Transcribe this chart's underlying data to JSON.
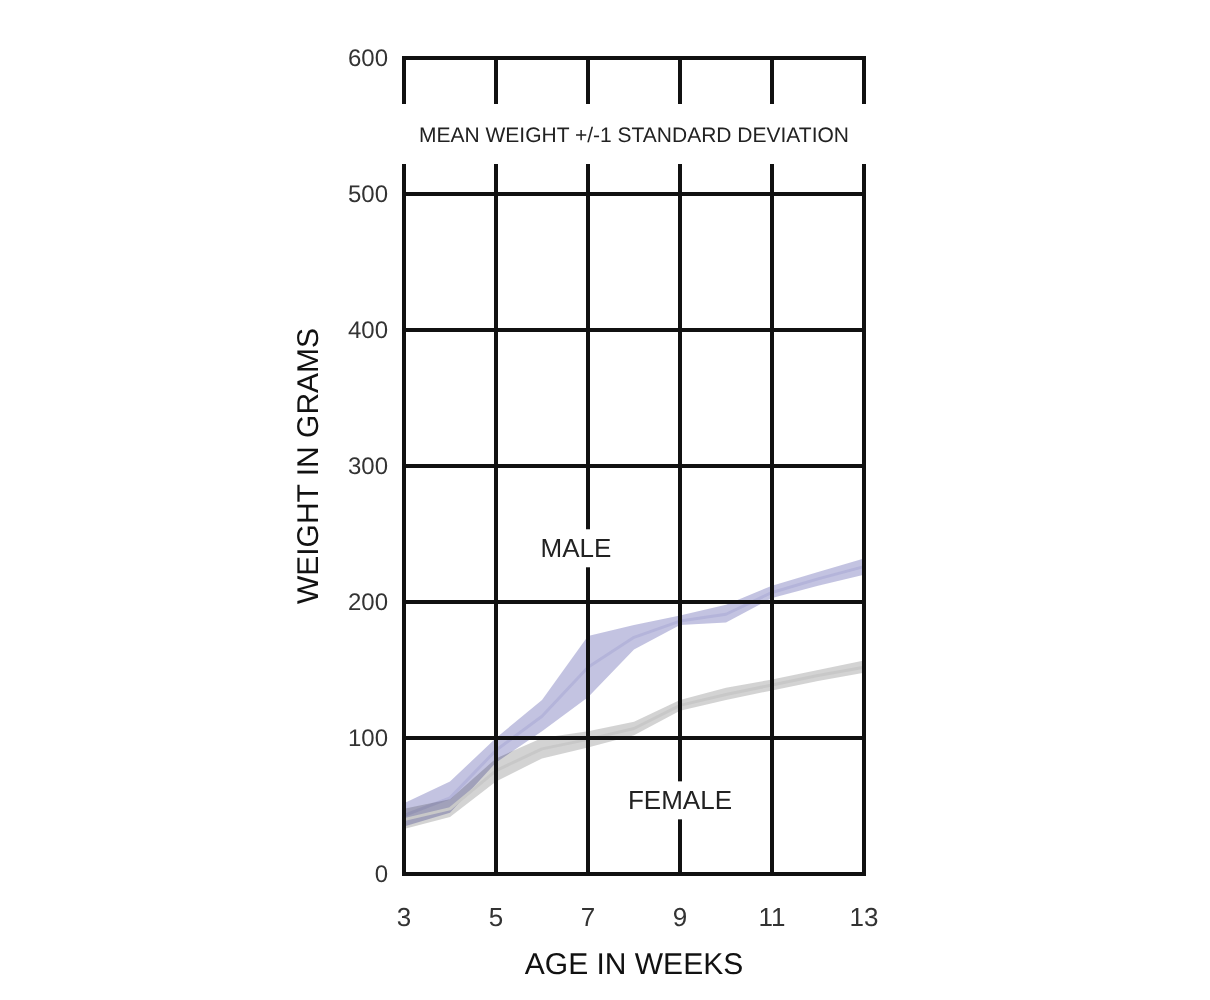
{
  "chart_data": {
    "type": "line",
    "title": "MEAN WEIGHT +/-1 STANDARD DEVIATION",
    "xlabel": "AGE IN WEEKS",
    "ylabel": "WEIGHT IN GRAMS",
    "x": [
      3,
      4,
      5,
      6,
      7,
      8,
      9,
      10,
      11,
      12,
      13
    ],
    "xlim": [
      3,
      13
    ],
    "xticks": [
      3,
      5,
      7,
      9,
      11,
      13
    ],
    "ylim": [
      0,
      600
    ],
    "yticks": [
      0,
      100,
      200,
      300,
      400,
      500,
      600
    ],
    "grid": true,
    "legend": false,
    "series": [
      {
        "name": "MALE",
        "color": "#b4b4da",
        "values": [
          43,
          56,
          91,
          116,
          152,
          174,
          186,
          191,
          207,
          217,
          226
        ],
        "lower": [
          35,
          45,
          82,
          105,
          130,
          165,
          183,
          185,
          203,
          212,
          220
        ],
        "upper": [
          52,
          68,
          100,
          128,
          175,
          183,
          190,
          198,
          212,
          222,
          232
        ]
      },
      {
        "name": "FEMALE",
        "color": "#c8c8c8",
        "values": [
          40,
          48,
          76,
          92,
          99,
          107,
          124,
          132,
          139,
          146,
          152
        ],
        "lower": [
          33,
          42,
          68,
          85,
          93,
          102,
          120,
          128,
          135,
          142,
          148
        ],
        "upper": [
          48,
          55,
          85,
          100,
          105,
          112,
          128,
          137,
          143,
          150,
          157
        ]
      }
    ]
  }
}
